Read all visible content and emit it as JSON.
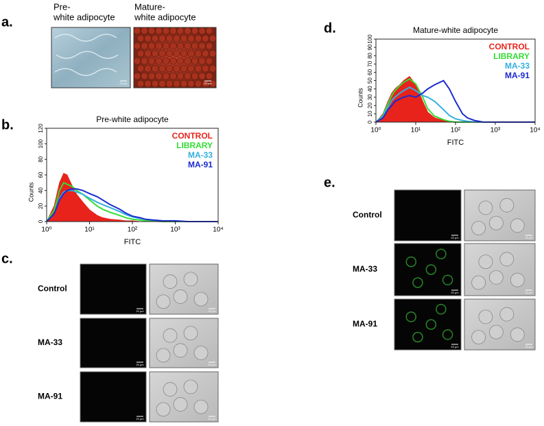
{
  "panels": {
    "a": {
      "letter": "a.",
      "images": [
        {
          "label_1": "Pre-",
          "label_2": "white adipocyte"
        },
        {
          "label_1": "Mature-",
          "label_2": "white adipocyte"
        }
      ]
    },
    "b": {
      "letter": "b."
    },
    "c": {
      "letter": "c.",
      "rows": [
        "Control",
        "MA-33",
        "MA-91"
      ]
    },
    "d": {
      "letter": "d."
    },
    "e": {
      "letter": "e.",
      "rows": [
        "Control",
        "MA-33",
        "MA-91"
      ]
    },
    "scale_bar": "20 μm"
  },
  "chart_data": [
    {
      "type": "line",
      "title": "Pre-white adipocyte",
      "x_label": "FITC",
      "y_label": "Counts",
      "x_log": true,
      "xlim": [
        1,
        10000
      ],
      "ylim": [
        0,
        120
      ],
      "xticks": [
        {
          "value": 1,
          "label": "10⁰"
        },
        {
          "value": 10,
          "label": "10¹"
        },
        {
          "value": 100,
          "label": "10²"
        },
        {
          "value": 1000,
          "label": "10³"
        },
        {
          "value": 10000,
          "label": "10⁴"
        }
      ],
      "yticks": [
        0,
        20,
        40,
        60,
        80,
        100,
        120
      ],
      "x": [
        1,
        1.5,
        2,
        2.5,
        3,
        4,
        5,
        7,
        10,
        15,
        20,
        30,
        50,
        70,
        100,
        150,
        200,
        300,
        500,
        1000,
        2000,
        10000
      ],
      "series": [
        {
          "name": "CONTROL",
          "color": "#e8231c",
          "filled": true,
          "values": [
            0,
            20,
            50,
            62,
            60,
            45,
            35,
            25,
            15,
            8,
            5,
            3,
            2,
            1,
            1,
            0,
            0,
            0,
            0,
            0,
            0,
            0
          ]
        },
        {
          "name": "LIBRARY",
          "color": "#33dd33",
          "filled": false,
          "values": [
            0,
            15,
            40,
            50,
            48,
            45,
            40,
            35,
            28,
            20,
            16,
            12,
            8,
            5,
            3,
            2,
            1,
            1,
            0,
            0,
            0,
            0
          ]
        },
        {
          "name": "MA-33",
          "color": "#33b0e0",
          "filled": false,
          "values": [
            0,
            10,
            30,
            38,
            40,
            40,
            38,
            35,
            30,
            25,
            22,
            18,
            13,
            9,
            6,
            4,
            3,
            2,
            1,
            0,
            0,
            0
          ]
        },
        {
          "name": "MA-91",
          "color": "#1a2ad0",
          "filled": false,
          "values": [
            0,
            10,
            28,
            36,
            40,
            42,
            42,
            40,
            36,
            32,
            28,
            22,
            16,
            11,
            7,
            5,
            3,
            2,
            1,
            1,
            0,
            0
          ]
        }
      ]
    },
    {
      "type": "line",
      "title": "Mature-white adipocyte",
      "x_label": "FITC",
      "y_label": "Counts",
      "x_log": true,
      "xlim": [
        1,
        10000
      ],
      "ylim": [
        0,
        100
      ],
      "xticks": [
        {
          "value": 1,
          "label": "10⁰"
        },
        {
          "value": 10,
          "label": "10¹"
        },
        {
          "value": 100,
          "label": "10²"
        },
        {
          "value": 1000,
          "label": "10³"
        },
        {
          "value": 10000,
          "label": "10⁴"
        }
      ],
      "yticks": [
        0,
        10,
        20,
        30,
        40,
        50,
        60,
        70,
        80,
        90,
        100
      ],
      "x": [
        1,
        1.5,
        2,
        2.5,
        3,
        4,
        5,
        7,
        10,
        15,
        20,
        30,
        50,
        70,
        100,
        150,
        200,
        300,
        500,
        1000,
        2000,
        10000
      ],
      "series": [
        {
          "name": "CONTROL",
          "color": "#e8231c",
          "filled": true,
          "values": [
            0,
            10,
            25,
            35,
            40,
            45,
            50,
            55,
            45,
            25,
            12,
            5,
            2,
            0,
            0,
            0,
            0,
            0,
            0,
            0,
            0,
            0
          ]
        },
        {
          "name": "LIBRARY",
          "color": "#33dd33",
          "filled": false,
          "values": [
            0,
            8,
            22,
            32,
            38,
            44,
            48,
            52,
            46,
            30,
            16,
            7,
            3,
            1,
            0,
            0,
            0,
            0,
            0,
            0,
            0,
            0
          ]
        },
        {
          "name": "MA-33",
          "color": "#33b0e0",
          "filled": false,
          "values": [
            0,
            7,
            18,
            26,
            30,
            35,
            38,
            42,
            38,
            32,
            30,
            25,
            15,
            8,
            4,
            2,
            1,
            0,
            0,
            0,
            0,
            0
          ]
        },
        {
          "name": "MA-91",
          "color": "#1a2ad0",
          "filled": false,
          "values": [
            0,
            5,
            15,
            20,
            25,
            28,
            30,
            32,
            30,
            35,
            40,
            45,
            50,
            40,
            25,
            10,
            5,
            2,
            0,
            0,
            0,
            0
          ]
        }
      ]
    }
  ]
}
